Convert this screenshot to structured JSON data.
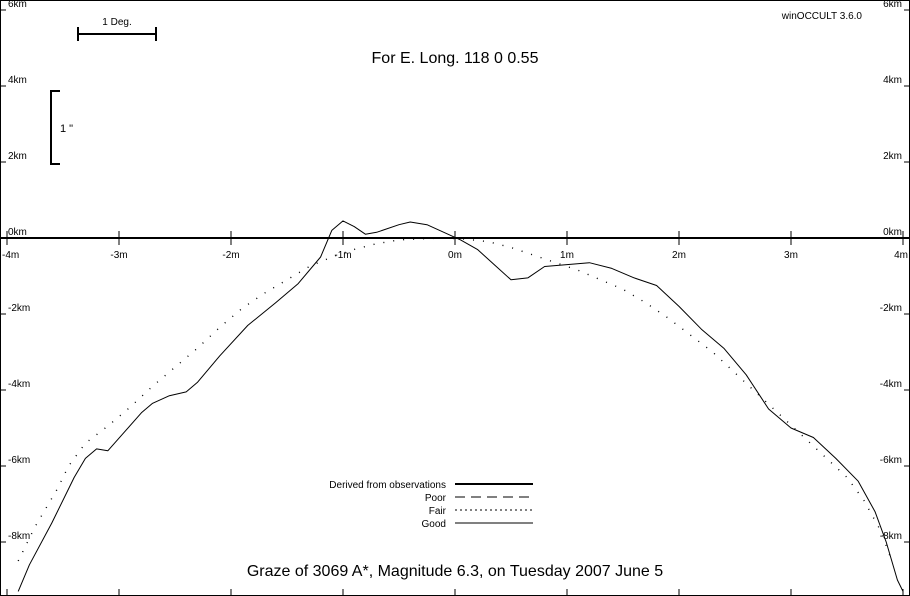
{
  "app": {
    "version": "winOCCULT 3.6.0"
  },
  "header": {
    "longitude": "For E. Long.  118  0  0.55",
    "scale_deg": "1 Deg.",
    "scale_arcsec": "1 \""
  },
  "footer": {
    "title": "Graze of     3069   A*,  Magnitude   6.3,  on Tuesday  2007  June   5"
  },
  "legend": [
    {
      "label": "Derived from observations",
      "style": "thick"
    },
    {
      "label": "Poor",
      "style": "dashed"
    },
    {
      "label": "Fair",
      "style": "dotted"
    },
    {
      "label": "Good",
      "style": "solid"
    }
  ],
  "chart_data": {
    "type": "line",
    "xlabel": "",
    "ylabel": "",
    "xlim": [
      -4,
      4
    ],
    "ylim": [
      -9.3,
      6.2
    ],
    "x_ticks": [
      {
        "v": -4,
        "label": "-4m"
      },
      {
        "v": -3,
        "label": "-3m"
      },
      {
        "v": -2,
        "label": "-2m"
      },
      {
        "v": -1,
        "label": "-1m"
      },
      {
        "v": 0,
        "label": "0m"
      },
      {
        "v": 1,
        "label": "1m"
      },
      {
        "v": 2,
        "label": "2m"
      },
      {
        "v": 3,
        "label": "3m"
      },
      {
        "v": 4,
        "label": "4m"
      }
    ],
    "y_ticks": [
      {
        "v": 6,
        "label": "6km"
      },
      {
        "v": 4,
        "label": "4km"
      },
      {
        "v": 2,
        "label": "2km"
      },
      {
        "v": 0,
        "label": "0km"
      },
      {
        "v": -2,
        "label": "-2km"
      },
      {
        "v": -4,
        "label": "-4km"
      },
      {
        "v": -6,
        "label": "-6km"
      },
      {
        "v": -8,
        "label": "-8km"
      }
    ],
    "series": [
      {
        "style": "solid",
        "points": [
          [
            -3.9,
            -9.3
          ],
          [
            -3.8,
            -8.6
          ],
          [
            -3.6,
            -7.5
          ],
          [
            -3.4,
            -6.3
          ],
          [
            -3.3,
            -5.8
          ],
          [
            -3.2,
            -5.55
          ],
          [
            -3.1,
            -5.6
          ],
          [
            -2.95,
            -5.1
          ],
          [
            -2.8,
            -4.6
          ],
          [
            -2.7,
            -4.35
          ],
          [
            -2.55,
            -4.15
          ],
          [
            -2.4,
            -4.05
          ],
          [
            -2.3,
            -3.8
          ],
          [
            -2.1,
            -3.1
          ],
          [
            -1.85,
            -2.3
          ],
          [
            -1.6,
            -1.7
          ],
          [
            -1.4,
            -1.2
          ],
          [
            -1.2,
            -0.5
          ],
          [
            -1.1,
            0.2
          ],
          [
            -1.0,
            0.45
          ],
          [
            -0.9,
            0.3
          ],
          [
            -0.8,
            0.1
          ],
          [
            -0.7,
            0.15
          ],
          [
            -0.5,
            0.35
          ],
          [
            -0.4,
            0.42
          ],
          [
            -0.25,
            0.35
          ],
          [
            -0.1,
            0.15
          ],
          [
            0.05,
            -0.05
          ],
          [
            0.2,
            -0.3
          ],
          [
            0.35,
            -0.7
          ],
          [
            0.5,
            -1.1
          ],
          [
            0.65,
            -1.05
          ],
          [
            0.8,
            -0.75
          ],
          [
            1.0,
            -0.7
          ],
          [
            1.2,
            -0.65
          ],
          [
            1.4,
            -0.8
          ],
          [
            1.6,
            -1.05
          ],
          [
            1.8,
            -1.25
          ],
          [
            2.0,
            -1.8
          ],
          [
            2.2,
            -2.4
          ],
          [
            2.4,
            -2.9
          ],
          [
            2.6,
            -3.6
          ],
          [
            2.8,
            -4.5
          ],
          [
            3.0,
            -5.0
          ],
          [
            3.2,
            -5.25
          ],
          [
            3.4,
            -5.8
          ],
          [
            3.6,
            -6.4
          ],
          [
            3.75,
            -7.2
          ],
          [
            3.85,
            -8.0
          ],
          [
            3.95,
            -9.0
          ],
          [
            4.0,
            -9.3
          ]
        ]
      },
      {
        "style": "dotted",
        "points": [
          [
            -3.9,
            -8.5
          ],
          [
            -3.75,
            -7.6
          ],
          [
            -3.55,
            -6.6
          ],
          [
            -3.45,
            -6.0
          ],
          [
            -3.3,
            -5.4
          ],
          [
            -3.1,
            -4.95
          ],
          [
            -2.9,
            -4.45
          ],
          [
            -2.7,
            -3.9
          ],
          [
            -2.5,
            -3.4
          ],
          [
            -2.3,
            -2.9
          ],
          [
            -2.1,
            -2.35
          ],
          [
            -1.9,
            -1.85
          ],
          [
            -1.7,
            -1.45
          ],
          [
            -1.5,
            -1.1
          ],
          [
            -1.3,
            -0.75
          ],
          [
            -1.1,
            -0.5
          ],
          [
            -0.9,
            -0.3
          ],
          [
            -0.7,
            -0.15
          ],
          [
            -0.5,
            -0.05
          ],
          [
            -0.3,
            -0.02
          ],
          [
            -0.1,
            0.0
          ],
          [
            0.1,
            -0.03
          ],
          [
            0.3,
            -0.1
          ],
          [
            0.5,
            -0.25
          ],
          [
            0.7,
            -0.45
          ],
          [
            0.9,
            -0.65
          ],
          [
            1.1,
            -0.85
          ],
          [
            1.3,
            -1.1
          ],
          [
            1.5,
            -1.35
          ],
          [
            1.7,
            -1.7
          ],
          [
            1.9,
            -2.1
          ],
          [
            2.1,
            -2.55
          ],
          [
            2.3,
            -3.0
          ],
          [
            2.5,
            -3.55
          ],
          [
            2.7,
            -4.1
          ],
          [
            2.9,
            -4.65
          ],
          [
            3.1,
            -5.2
          ],
          [
            3.3,
            -5.75
          ],
          [
            3.5,
            -6.3
          ],
          [
            3.65,
            -6.9
          ],
          [
            3.8,
            -7.7
          ],
          [
            3.9,
            -8.5
          ]
        ]
      }
    ]
  }
}
